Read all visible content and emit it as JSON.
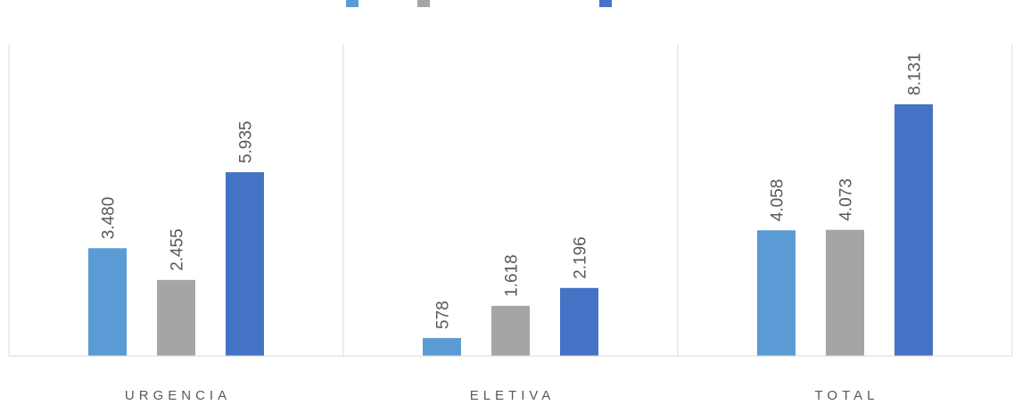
{
  "chart_data": {
    "type": "bar",
    "categories": [
      "URGENCIA",
      "ELETIVA",
      "TOTAL"
    ],
    "series": [
      {
        "color": "#5b9bd5",
        "values": [
          3480,
          578,
          4058
        ],
        "value_labels": [
          "3.480",
          "578",
          "4.058"
        ]
      },
      {
        "color": "#a5a5a5",
        "values": [
          2455,
          1618,
          4073
        ],
        "value_labels": [
          "2.455",
          "1.618",
          "4.073"
        ]
      },
      {
        "color": "#4472c4",
        "values": [
          5935,
          2196,
          8131
        ],
        "value_labels": [
          "5.935",
          "2.196",
          "8.131"
        ]
      }
    ],
    "ylim": [
      0,
      10000
    ]
  }
}
